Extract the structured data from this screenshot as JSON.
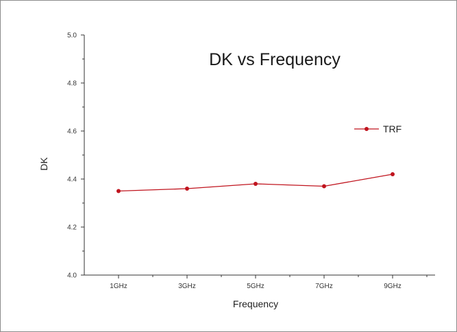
{
  "chart_data": {
    "type": "line",
    "title": "DK vs Frequency",
    "xlabel": "Frequency",
    "ylabel": "DK",
    "categories": [
      "1GHz",
      "3GHz",
      "5GHz",
      "7GHz",
      "9GHz"
    ],
    "series": [
      {
        "name": "TRF",
        "values": [
          4.35,
          4.36,
          4.38,
          4.37,
          4.42
        ],
        "color": "#c0141e"
      }
    ],
    "ylim": [
      4.0,
      5.0
    ],
    "yticks": [
      "4.0",
      "4.2",
      "4.4",
      "4.6",
      "4.8",
      "5.0"
    ],
    "grid": false,
    "legend_position": "right"
  }
}
